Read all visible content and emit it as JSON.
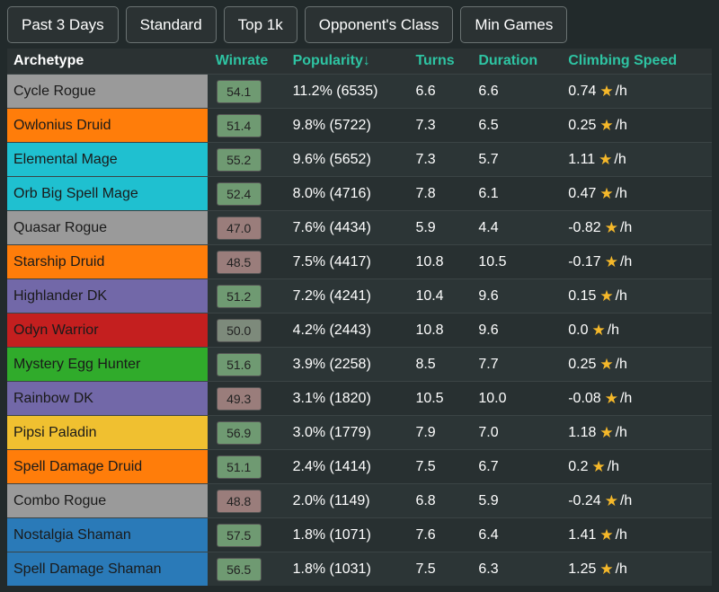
{
  "filters": [
    "Past 3 Days",
    "Standard",
    "Top 1k",
    "Opponent's Class",
    "Min Games"
  ],
  "headers": {
    "archetype": "Archetype",
    "winrate": "Winrate",
    "popularity": "Popularity↓",
    "turns": "Turns",
    "duration": "Duration",
    "climbing": "Climbing Speed"
  },
  "star_icon": "star-icon",
  "per_hour": "/h",
  "colors": {
    "teal_header": "#2ec4a3",
    "rogue": "#9a9a9a",
    "druid": "#ff7d0a",
    "mage": "#1fc0d0",
    "dk": "#7268a8",
    "warrior": "#c41f1f",
    "hunter": "#30ab2b",
    "paladin": "#f0c030",
    "shaman": "#2a7ab8",
    "win_high": "#6f9a72",
    "win_low": "#9a7d7b"
  },
  "rows": [
    {
      "archetype": "Cycle Rogue",
      "color": "#9a9a9a",
      "winrate": "54.1",
      "win_bg": "#6f9a72",
      "popularity": "11.2% (6535)",
      "turns": "6.6",
      "duration": "6.6",
      "climbing": "0.74"
    },
    {
      "archetype": "Owlonius Druid",
      "color": "#ff7d0a",
      "winrate": "51.4",
      "win_bg": "#6f9a72",
      "popularity": "9.8% (5722)",
      "turns": "7.3",
      "duration": "6.5",
      "climbing": "0.25"
    },
    {
      "archetype": "Elemental Mage",
      "color": "#1fc0d0",
      "winrate": "55.2",
      "win_bg": "#6f9a72",
      "popularity": "9.6% (5652)",
      "turns": "7.3",
      "duration": "5.7",
      "climbing": "1.11"
    },
    {
      "archetype": "Orb Big Spell Mage",
      "color": "#1fc0d0",
      "winrate": "52.4",
      "win_bg": "#6f9a72",
      "popularity": "8.0% (4716)",
      "turns": "7.8",
      "duration": "6.1",
      "climbing": "0.47"
    },
    {
      "archetype": "Quasar Rogue",
      "color": "#9a9a9a",
      "winrate": "47.0",
      "win_bg": "#9a7d7b",
      "popularity": "7.6% (4434)",
      "turns": "5.9",
      "duration": "4.4",
      "climbing": "-0.82"
    },
    {
      "archetype": "Starship Druid",
      "color": "#ff7d0a",
      "winrate": "48.5",
      "win_bg": "#9a7d7b",
      "popularity": "7.5% (4417)",
      "turns": "10.8",
      "duration": "10.5",
      "climbing": "-0.17"
    },
    {
      "archetype": "Highlander DK",
      "color": "#7268a8",
      "winrate": "51.2",
      "win_bg": "#6f9a72",
      "popularity": "7.2% (4241)",
      "turns": "10.4",
      "duration": "9.6",
      "climbing": "0.15"
    },
    {
      "archetype": "Odyn Warrior",
      "color": "#c41f1f",
      "winrate": "50.0",
      "win_bg": "#7d8a7b",
      "popularity": "4.2% (2443)",
      "turns": "10.8",
      "duration": "9.6",
      "climbing": "0.0"
    },
    {
      "archetype": "Mystery Egg Hunter",
      "color": "#30ab2b",
      "winrate": "51.6",
      "win_bg": "#6f9a72",
      "popularity": "3.9% (2258)",
      "turns": "8.5",
      "duration": "7.7",
      "climbing": "0.25"
    },
    {
      "archetype": "Rainbow DK",
      "color": "#7268a8",
      "winrate": "49.3",
      "win_bg": "#9a7d7b",
      "popularity": "3.1% (1820)",
      "turns": "10.5",
      "duration": "10.0",
      "climbing": "-0.08"
    },
    {
      "archetype": "Pipsi Paladin",
      "color": "#f0c030",
      "winrate": "56.9",
      "win_bg": "#6f9a72",
      "popularity": "3.0% (1779)",
      "turns": "7.9",
      "duration": "7.0",
      "climbing": "1.18"
    },
    {
      "archetype": "Spell Damage Druid",
      "color": "#ff7d0a",
      "winrate": "51.1",
      "win_bg": "#6f9a72",
      "popularity": "2.4% (1414)",
      "turns": "7.5",
      "duration": "6.7",
      "climbing": "0.2"
    },
    {
      "archetype": "Combo Rogue",
      "color": "#9a9a9a",
      "winrate": "48.8",
      "win_bg": "#9a7d7b",
      "popularity": "2.0% (1149)",
      "turns": "6.8",
      "duration": "5.9",
      "climbing": "-0.24"
    },
    {
      "archetype": "Nostalgia Shaman",
      "color": "#2a7ab8",
      "winrate": "57.5",
      "win_bg": "#6f9a72",
      "popularity": "1.8% (1071)",
      "turns": "7.6",
      "duration": "6.4",
      "climbing": "1.41"
    },
    {
      "archetype": "Spell Damage Shaman",
      "color": "#2a7ab8",
      "winrate": "56.5",
      "win_bg": "#6f9a72",
      "popularity": "1.8% (1031)",
      "turns": "7.5",
      "duration": "6.3",
      "climbing": "1.25"
    }
  ]
}
